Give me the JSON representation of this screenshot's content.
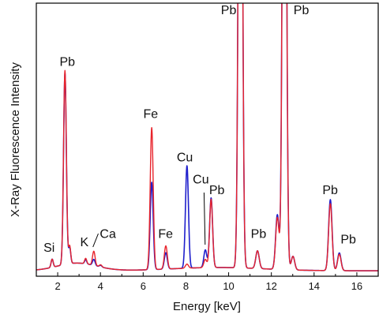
{
  "chart_data": {
    "type": "line",
    "title": "",
    "xlabel": "Energy [keV]",
    "ylabel": "X-Ray Fluorescence Intensity",
    "xlim": [
      1.0,
      17.0
    ],
    "ylim": [
      0,
      100
    ],
    "x_ticks": [
      2,
      4,
      6,
      8,
      10,
      12,
      14,
      16
    ],
    "y_tick_labels": false,
    "grid": false,
    "legend": "none",
    "series": [
      {
        "color": "#1f1fcc",
        "peaks": [
          {
            "x": 1.74,
            "h": 3.0,
            "w": 0.05
          },
          {
            "x": 2.34,
            "h": 70.0,
            "w": 0.065
          },
          {
            "x": 2.56,
            "h": 6.0,
            "w": 0.05
          },
          {
            "x": 3.31,
            "h": 1.5,
            "w": 0.05
          },
          {
            "x": 3.69,
            "h": 2.2,
            "w": 0.06
          },
          {
            "x": 4.01,
            "h": 0.6,
            "w": 0.06
          },
          {
            "x": 6.4,
            "h": 32.0,
            "w": 0.07
          },
          {
            "x": 7.06,
            "h": 6.0,
            "w": 0.07
          },
          {
            "x": 8.05,
            "h": 37.5,
            "w": 0.07
          },
          {
            "x": 8.91,
            "h": 6.5,
            "w": 0.07
          },
          {
            "x": 9.18,
            "h": 25.5,
            "w": 0.07
          },
          {
            "x": 10.55,
            "h": 300.0,
            "w": 0.08
          },
          {
            "x": 11.35,
            "h": 6.5,
            "w": 0.08
          },
          {
            "x": 12.28,
            "h": 20.0,
            "w": 0.08
          },
          {
            "x": 12.61,
            "h": 300.0,
            "w": 0.08
          },
          {
            "x": 13.01,
            "h": 5.0,
            "w": 0.08
          },
          {
            "x": 14.76,
            "h": 26.0,
            "w": 0.08
          },
          {
            "x": 15.18,
            "h": 6.5,
            "w": 0.08
          }
        ]
      },
      {
        "color": "#e8242c",
        "peaks": [
          {
            "x": 1.74,
            "h": 3.0,
            "w": 0.05
          },
          {
            "x": 2.34,
            "h": 71.0,
            "w": 0.065
          },
          {
            "x": 2.56,
            "h": 6.5,
            "w": 0.05
          },
          {
            "x": 3.31,
            "h": 2.0,
            "w": 0.05
          },
          {
            "x": 3.69,
            "h": 5.2,
            "w": 0.06
          },
          {
            "x": 4.01,
            "h": 0.8,
            "w": 0.06
          },
          {
            "x": 6.4,
            "h": 52.0,
            "w": 0.07
          },
          {
            "x": 7.06,
            "h": 8.5,
            "w": 0.07
          },
          {
            "x": 8.05,
            "h": 1.5,
            "w": 0.07
          },
          {
            "x": 8.91,
            "h": 3.0,
            "w": 0.07
          },
          {
            "x": 9.18,
            "h": 25.0,
            "w": 0.07
          },
          {
            "x": 10.55,
            "h": 300.0,
            "w": 0.08
          },
          {
            "x": 11.35,
            "h": 6.5,
            "w": 0.08
          },
          {
            "x": 12.28,
            "h": 19.0,
            "w": 0.08
          },
          {
            "x": 12.61,
            "h": 300.0,
            "w": 0.08
          },
          {
            "x": 13.01,
            "h": 5.0,
            "w": 0.08
          },
          {
            "x": 14.76,
            "h": 24.5,
            "w": 0.08
          },
          {
            "x": 15.18,
            "h": 6.0,
            "w": 0.08
          }
        ]
      }
    ],
    "annotations": [
      {
        "text": "Si",
        "x": 1.6,
        "y": 9
      },
      {
        "text": "Pb",
        "x": 2.45,
        "y": 77
      },
      {
        "text": "K",
        "x": 3.25,
        "y": 11
      },
      {
        "text": "Ca",
        "x": 4.35,
        "y": 14
      },
      {
        "text": "Fe",
        "x": 6.35,
        "y": 58
      },
      {
        "text": "Fe",
        "x": 7.05,
        "y": 14
      },
      {
        "text": "Cu",
        "x": 7.95,
        "y": 42
      },
      {
        "text": "Cu",
        "x": 8.7,
        "y": 34
      },
      {
        "text": "Pb",
        "x": 9.45,
        "y": 30
      },
      {
        "text": "Pb",
        "x": 10.0,
        "y": 96
      },
      {
        "text": "Pb",
        "x": 11.4,
        "y": 14
      },
      {
        "text": "Pb",
        "x": 13.4,
        "y": 96
      },
      {
        "text": "Pb",
        "x": 14.75,
        "y": 30
      },
      {
        "text": "Pb",
        "x": 15.6,
        "y": 12
      }
    ]
  }
}
